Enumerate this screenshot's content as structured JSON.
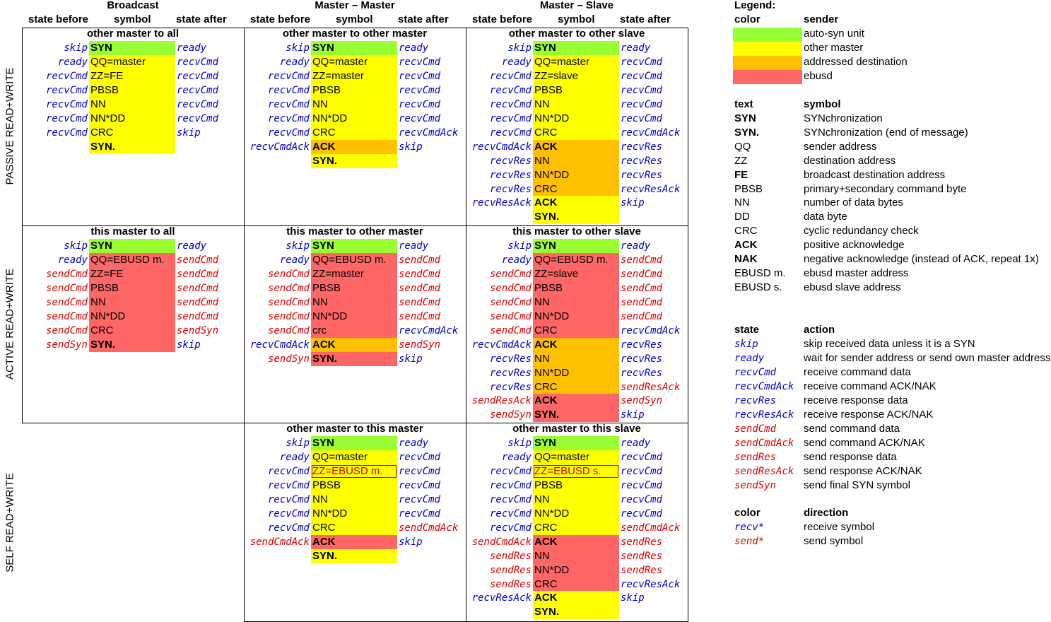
{
  "colors": {
    "auto": "#99ff33",
    "other": "#ffff00",
    "addressed": "#ffc000",
    "ebusd": "#ff6666",
    "recv": "#0000cc",
    "send": "#dd0000"
  },
  "columns": [
    {
      "title": "Broadcast",
      "before": "state before",
      "symbol": "symbol",
      "after": "state after"
    },
    {
      "title": "Master – Master",
      "before": "state before",
      "symbol": "symbol",
      "after": "state after"
    },
    {
      "title": "Master – Slave",
      "before": "state before",
      "symbol": "symbol",
      "after": "state after"
    }
  ],
  "row_labels": [
    "PASSIVE READ+WRITE",
    "ACTIVE READ+WRITE",
    "SELF READ+WRITE"
  ],
  "panels": [
    {
      "title": "other master to all",
      "rows": [
        {
          "b": "skip",
          "s": "SYN",
          "a": "ready",
          "c": "auto",
          "bold": true
        },
        {
          "b": "ready",
          "s": "QQ=master",
          "a": "recvCmd",
          "c": "other"
        },
        {
          "b": "recvCmd",
          "s": "ZZ=FE",
          "a": "recvCmd",
          "c": "other"
        },
        {
          "b": "recvCmd",
          "s": "PBSB",
          "a": "recvCmd",
          "c": "other"
        },
        {
          "b": "recvCmd",
          "s": "NN",
          "a": "recvCmd",
          "c": "other"
        },
        {
          "b": "recvCmd",
          "s": "NN*DD",
          "a": "recvCmd",
          "c": "other"
        },
        {
          "b": "recvCmd",
          "s": "CRC",
          "a": "skip",
          "c": "other"
        },
        {
          "b": "",
          "s": "SYN.",
          "a": "",
          "c": "other",
          "bold": true
        }
      ]
    },
    {
      "title": "other master to other master",
      "rows": [
        {
          "b": "skip",
          "s": "SYN",
          "a": "ready",
          "c": "auto",
          "bold": true
        },
        {
          "b": "ready",
          "s": "QQ=master",
          "a": "recvCmd",
          "c": "other"
        },
        {
          "b": "recvCmd",
          "s": "ZZ=master",
          "a": "recvCmd",
          "c": "other"
        },
        {
          "b": "recvCmd",
          "s": "PBSB",
          "a": "recvCmd",
          "c": "other"
        },
        {
          "b": "recvCmd",
          "s": "NN",
          "a": "recvCmd",
          "c": "other"
        },
        {
          "b": "recvCmd",
          "s": "NN*DD",
          "a": "recvCmd",
          "c": "other"
        },
        {
          "b": "recvCmd",
          "s": "CRC",
          "a": "recvCmdAck",
          "c": "other"
        },
        {
          "b": "recvCmdAck",
          "s": "ACK",
          "a": "skip",
          "c": "addressed",
          "bold": true
        },
        {
          "b": "",
          "s": "SYN.",
          "a": "",
          "c": "other",
          "bold": true
        }
      ]
    },
    {
      "title": "other master to other slave",
      "rows": [
        {
          "b": "skip",
          "s": "SYN",
          "a": "ready",
          "c": "auto",
          "bold": true
        },
        {
          "b": "ready",
          "s": "QQ=master",
          "a": "recvCmd",
          "c": "other"
        },
        {
          "b": "recvCmd",
          "s": "ZZ=slave",
          "a": "recvCmd",
          "c": "other"
        },
        {
          "b": "recvCmd",
          "s": "PBSB",
          "a": "recvCmd",
          "c": "other"
        },
        {
          "b": "recvCmd",
          "s": "NN",
          "a": "recvCmd",
          "c": "other"
        },
        {
          "b": "recvCmd",
          "s": "NN*DD",
          "a": "recvCmd",
          "c": "other"
        },
        {
          "b": "recvCmd",
          "s": "CRC",
          "a": "recvCmdAck",
          "c": "other"
        },
        {
          "b": "recvCmdAck",
          "s": "ACK",
          "a": "recvRes",
          "c": "addressed",
          "bold": true
        },
        {
          "b": "recvRes",
          "s": "NN",
          "a": "recvRes",
          "c": "addressed"
        },
        {
          "b": "recvRes",
          "s": "NN*DD",
          "a": "recvRes",
          "c": "addressed"
        },
        {
          "b": "recvRes",
          "s": "CRC",
          "a": "recvResAck",
          "c": "addressed"
        },
        {
          "b": "recvResAck",
          "s": "ACK",
          "a": "skip",
          "c": "other",
          "bold": true
        },
        {
          "b": "",
          "s": "SYN.",
          "a": "",
          "c": "other",
          "bold": true
        }
      ]
    },
    {
      "title": "this master to all",
      "rows": [
        {
          "b": "skip",
          "s": "SYN",
          "a": "ready",
          "c": "auto",
          "bold": true
        },
        {
          "b": "ready",
          "s": "QQ=EBUSD m.",
          "a": "sendCmd",
          "c": "ebusd"
        },
        {
          "b": "sendCmd",
          "s": "ZZ=FE",
          "a": "sendCmd",
          "c": "ebusd"
        },
        {
          "b": "sendCmd",
          "s": "PBSB",
          "a": "sendCmd",
          "c": "ebusd"
        },
        {
          "b": "sendCmd",
          "s": "NN",
          "a": "sendCmd",
          "c": "ebusd"
        },
        {
          "b": "sendCmd",
          "s": "NN*DD",
          "a": "sendCmd",
          "c": "ebusd"
        },
        {
          "b": "sendCmd",
          "s": "CRC",
          "a": "sendSyn",
          "c": "ebusd"
        },
        {
          "b": "sendSyn",
          "s": "SYN.",
          "a": "skip",
          "c": "ebusd",
          "bold": true
        }
      ]
    },
    {
      "title": "this master to other master",
      "rows": [
        {
          "b": "skip",
          "s": "SYN",
          "a": "ready",
          "c": "auto",
          "bold": true
        },
        {
          "b": "ready",
          "s": "QQ=EBUSD m.",
          "a": "sendCmd",
          "c": "ebusd"
        },
        {
          "b": "sendCmd",
          "s": "ZZ=master",
          "a": "sendCmd",
          "c": "ebusd"
        },
        {
          "b": "sendCmd",
          "s": "PBSB",
          "a": "sendCmd",
          "c": "ebusd"
        },
        {
          "b": "sendCmd",
          "s": "NN",
          "a": "sendCmd",
          "c": "ebusd"
        },
        {
          "b": "sendCmd",
          "s": "NN*DD",
          "a": "sendCmd",
          "c": "ebusd"
        },
        {
          "b": "sendCmd",
          "s": "crc",
          "a": "recvCmdAck",
          "c": "ebusd"
        },
        {
          "b": "recvCmdAck",
          "s": "ACK",
          "a": "sendSyn",
          "c": "addressed",
          "bold": true
        },
        {
          "b": "sendSyn",
          "s": "SYN.",
          "a": "skip",
          "c": "ebusd",
          "bold": true
        }
      ]
    },
    {
      "title": "this master to other slave",
      "rows": [
        {
          "b": "skip",
          "s": "SYN",
          "a": "ready",
          "c": "auto",
          "bold": true
        },
        {
          "b": "ready",
          "s": "QQ=EBUSD m.",
          "a": "sendCmd",
          "c": "ebusd"
        },
        {
          "b": "sendCmd",
          "s": "ZZ=slave",
          "a": "sendCmd",
          "c": "ebusd"
        },
        {
          "b": "sendCmd",
          "s": "PBSB",
          "a": "sendCmd",
          "c": "ebusd"
        },
        {
          "b": "sendCmd",
          "s": "NN",
          "a": "sendCmd",
          "c": "ebusd"
        },
        {
          "b": "sendCmd",
          "s": "NN*DD",
          "a": "sendCmd",
          "c": "ebusd"
        },
        {
          "b": "sendCmd",
          "s": "CRC",
          "a": "recvCmdAck",
          "c": "ebusd"
        },
        {
          "b": "recvCmdAck",
          "s": "ACK",
          "a": "recvRes",
          "c": "addressed",
          "bold": true
        },
        {
          "b": "recvRes",
          "s": "NN",
          "a": "recvRes",
          "c": "addressed"
        },
        {
          "b": "recvRes",
          "s": "NN*DD",
          "a": "recvRes",
          "c": "addressed"
        },
        {
          "b": "recvRes",
          "s": "CRC",
          "a": "sendResAck",
          "c": "addressed"
        },
        {
          "b": "sendResAck",
          "s": "ACK",
          "a": "sendSyn",
          "c": "ebusd",
          "bold": true
        },
        {
          "b": "sendSyn",
          "s": "SYN.",
          "a": "skip",
          "c": "ebusd",
          "bold": true
        }
      ]
    },
    {
      "title": "other master to this master",
      "rows": [
        {
          "b": "skip",
          "s": "SYN",
          "a": "ready",
          "c": "auto",
          "bold": true
        },
        {
          "b": "ready",
          "s": "QQ=master",
          "a": "recvCmd",
          "c": "other"
        },
        {
          "b": "recvCmd",
          "s": "ZZ=EBUSD m.",
          "a": "recvCmd",
          "c": "other",
          "boxed": true
        },
        {
          "b": "recvCmd",
          "s": "PBSB",
          "a": "recvCmd",
          "c": "other"
        },
        {
          "b": "recvCmd",
          "s": "NN",
          "a": "recvCmd",
          "c": "other"
        },
        {
          "b": "recvCmd",
          "s": "NN*DD",
          "a": "recvCmd",
          "c": "other"
        },
        {
          "b": "recvCmd",
          "s": "CRC",
          "a": "sendCmdAck",
          "c": "other"
        },
        {
          "b": "sendCmdAck",
          "s": "ACK",
          "a": "skip",
          "c": "ebusd",
          "bold": true
        },
        {
          "b": "",
          "s": "SYN.",
          "a": "",
          "c": "other",
          "bold": true
        }
      ]
    },
    {
      "title": "other master to this slave",
      "rows": [
        {
          "b": "skip",
          "s": "SYN",
          "a": "ready",
          "c": "auto",
          "bold": true
        },
        {
          "b": "ready",
          "s": "QQ=master",
          "a": "recvCmd",
          "c": "other"
        },
        {
          "b": "recvCmd",
          "s": "ZZ=EBUSD s.",
          "a": "recvCmd",
          "c": "other",
          "boxed": true
        },
        {
          "b": "recvCmd",
          "s": "PBSB",
          "a": "recvCmd",
          "c": "other"
        },
        {
          "b": "recvCmd",
          "s": "NN",
          "a": "recvCmd",
          "c": "other"
        },
        {
          "b": "recvCmd",
          "s": "NN*DD",
          "a": "recvCmd",
          "c": "other"
        },
        {
          "b": "recvCmd",
          "s": "CRC",
          "a": "sendCmdAck",
          "c": "other"
        },
        {
          "b": "sendCmdAck",
          "s": "ACK",
          "a": "sendRes",
          "c": "ebusd",
          "bold": true
        },
        {
          "b": "sendRes",
          "s": "NN",
          "a": "sendRes",
          "c": "ebusd"
        },
        {
          "b": "sendRes",
          "s": "NN*DD",
          "a": "sendRes",
          "c": "ebusd"
        },
        {
          "b": "sendRes",
          "s": "CRC",
          "a": "recvResAck",
          "c": "ebusd"
        },
        {
          "b": "recvResAck",
          "s": "ACK",
          "a": "skip",
          "c": "other",
          "bold": true
        },
        {
          "b": "",
          "s": "SYN.",
          "a": "",
          "c": "other",
          "bold": true
        }
      ]
    }
  ],
  "legend": {
    "title": "Legend:",
    "color_header": [
      "color",
      "sender"
    ],
    "colors": [
      {
        "c": "auto",
        "label": "auto-syn unit"
      },
      {
        "c": "other",
        "label": "other master"
      },
      {
        "c": "addressed",
        "label": "addressed destination"
      },
      {
        "c": "ebusd",
        "label": "ebusd"
      }
    ],
    "text_header": [
      "text",
      "symbol"
    ],
    "texts": [
      {
        "k": "SYN",
        "v": "SYNchronization",
        "bold": true
      },
      {
        "k": "SYN.",
        "v": "SYNchronization (end of message)",
        "bold": true
      },
      {
        "k": "QQ",
        "v": "sender address"
      },
      {
        "k": "ZZ",
        "v": "destination address"
      },
      {
        "k": "FE",
        "v": "broadcast destination address",
        "bold": true
      },
      {
        "k": "PBSB",
        "v": "primary+secondary command byte"
      },
      {
        "k": "NN",
        "v": "number of data bytes"
      },
      {
        "k": "DD",
        "v": "data byte"
      },
      {
        "k": "CRC",
        "v": "cyclic redundancy check"
      },
      {
        "k": "ACK",
        "v": "positive acknowledge",
        "bold": true
      },
      {
        "k": "NAK",
        "v": "negative acknowledge (instead of ACK, repeat 1x)",
        "bold": true
      },
      {
        "k": "EBUSD m.",
        "v": "ebusd master address"
      },
      {
        "k": "EBUSD s.",
        "v": "ebusd slave address"
      }
    ],
    "state_header": [
      "state",
      "action"
    ],
    "states": [
      {
        "k": "skip",
        "v": "skip received data unless it is a SYN"
      },
      {
        "k": "ready",
        "v": "wait for sender address or send own master address"
      },
      {
        "k": "recvCmd",
        "v": "receive command data"
      },
      {
        "k": "recvCmdAck",
        "v": "receive command ACK/NAK"
      },
      {
        "k": "recvRes",
        "v": "receive response data"
      },
      {
        "k": "recvResAck",
        "v": "receive response ACK/NAK"
      },
      {
        "k": "sendCmd",
        "v": "send command data"
      },
      {
        "k": "sendCmdAck",
        "v": "send command ACK/NAK"
      },
      {
        "k": "sendRes",
        "v": "send response data"
      },
      {
        "k": "sendResAck",
        "v": "send response ACK/NAK"
      },
      {
        "k": "sendSyn",
        "v": "send final SYN symbol"
      }
    ],
    "dir_header": [
      "color",
      "direction"
    ],
    "dirs": [
      {
        "k": "recv*",
        "v": "receive symbol"
      },
      {
        "k": "send*",
        "v": "send symbol"
      }
    ]
  }
}
